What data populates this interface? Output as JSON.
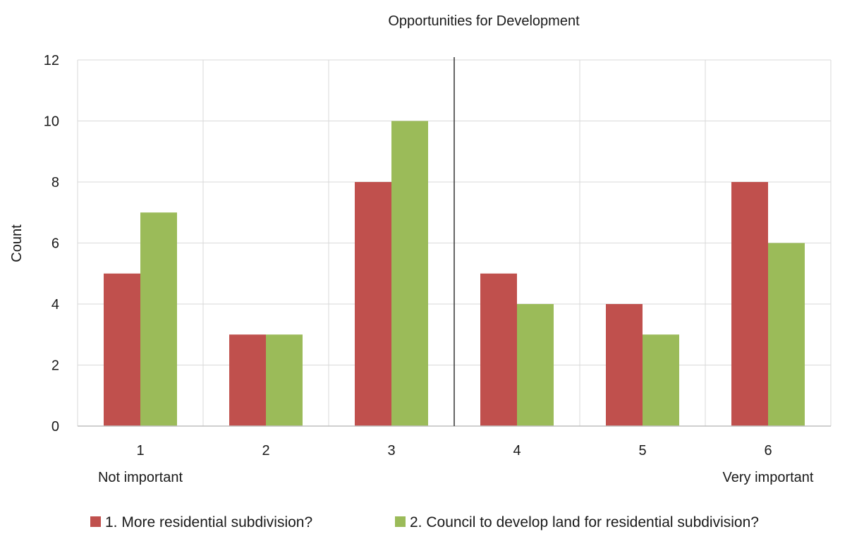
{
  "chart_data": {
    "type": "bar",
    "title": "Opportunities for Development",
    "xlabel": "",
    "ylabel": "Count",
    "categories": [
      "1",
      "2",
      "3",
      "4",
      "5",
      "6"
    ],
    "category_sublabels": [
      "Not important",
      "",
      "",
      "",
      "",
      "Very important"
    ],
    "series": [
      {
        "name": "1. More residential subdivision?",
        "values": [
          5,
          3,
          8,
          5,
          4,
          8
        ],
        "color": "#C0504D"
      },
      {
        "name": "2. Council to develop land for residential subdivision?",
        "values": [
          7,
          3,
          10,
          4,
          3,
          6
        ],
        "color": "#9BBB59"
      }
    ],
    "ylim": [
      0,
      12
    ],
    "yticks": [
      0,
      2,
      4,
      6,
      8,
      10,
      12
    ],
    "grid": true,
    "divider_between_categories": [
      "3",
      "4"
    ],
    "legend_position": "bottom"
  }
}
